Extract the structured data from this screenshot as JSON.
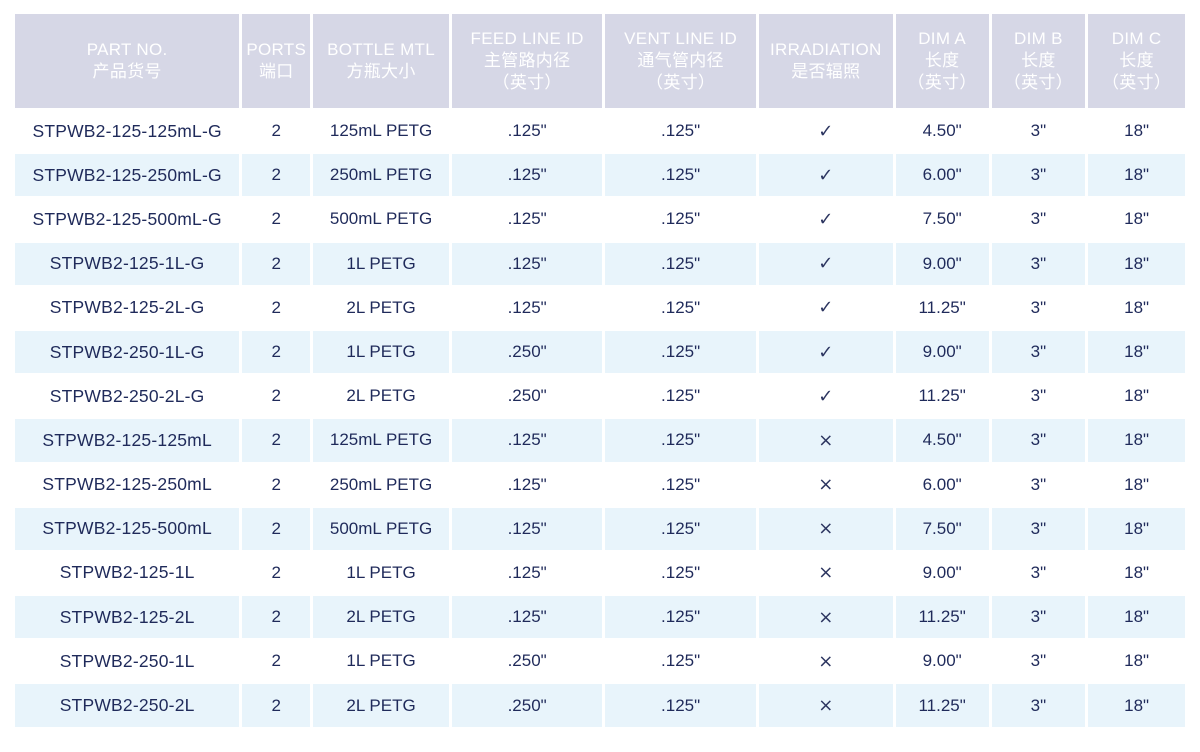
{
  "columns": [
    {
      "en": "PART NO.",
      "zh": "产品货号",
      "zh2": ""
    },
    {
      "en": "PORTS",
      "zh": "端口",
      "zh2": ""
    },
    {
      "en": "BOTTLE MTL",
      "zh": "方瓶大小",
      "zh2": ""
    },
    {
      "en": "FEED LINE ID",
      "zh": "主管路内径",
      "zh2": "（英寸）"
    },
    {
      "en": "VENT LINE ID",
      "zh": "通气管内径",
      "zh2": "（英寸）"
    },
    {
      "en": "IRRADIATION",
      "zh": "是否辐照",
      "zh2": ""
    },
    {
      "en": "DIM A",
      "zh": "长度",
      "zh2": "（英寸）"
    },
    {
      "en": "DIM B",
      "zh": "长度",
      "zh2": "（英寸）"
    },
    {
      "en": "DIM C",
      "zh": "长度",
      "zh2": "（英寸）"
    }
  ],
  "marks": {
    "yes": "✓",
    "no": "×"
  },
  "rows": [
    {
      "part": "STPWB2-125-125mL-G",
      "ports": "2",
      "bottle": "125mL PETG",
      "feed": ".125\"",
      "vent": ".125\"",
      "irradiation": "✓",
      "dim_a": "4.50\"",
      "dim_b": "3\"",
      "dim_c": "18\""
    },
    {
      "part": "STPWB2-125-250mL-G",
      "ports": "2",
      "bottle": "250mL PETG",
      "feed": ".125\"",
      "vent": ".125\"",
      "irradiation": "✓",
      "dim_a": "6.00\"",
      "dim_b": "3\"",
      "dim_c": "18\""
    },
    {
      "part": "STPWB2-125-500mL-G",
      "ports": "2",
      "bottle": "500mL PETG",
      "feed": ".125\"",
      "vent": ".125\"",
      "irradiation": "✓",
      "dim_a": "7.50\"",
      "dim_b": "3\"",
      "dim_c": "18\""
    },
    {
      "part": "STPWB2-125-1L-G",
      "ports": "2",
      "bottle": "1L PETG",
      "feed": ".125\"",
      "vent": ".125\"",
      "irradiation": "✓",
      "dim_a": "9.00\"",
      "dim_b": "3\"",
      "dim_c": "18\""
    },
    {
      "part": "STPWB2-125-2L-G",
      "ports": "2",
      "bottle": "2L PETG",
      "feed": ".125\"",
      "vent": ".125\"",
      "irradiation": "✓",
      "dim_a": "11.25\"",
      "dim_b": "3\"",
      "dim_c": "18\""
    },
    {
      "part": "STPWB2-250-1L-G",
      "ports": "2",
      "bottle": "1L PETG",
      "feed": ".250\"",
      "vent": ".125\"",
      "irradiation": "✓",
      "dim_a": "9.00\"",
      "dim_b": "3\"",
      "dim_c": "18\""
    },
    {
      "part": "STPWB2-250-2L-G",
      "ports": "2",
      "bottle": "2L PETG",
      "feed": ".250\"",
      "vent": ".125\"",
      "irradiation": "✓",
      "dim_a": "11.25\"",
      "dim_b": "3\"",
      "dim_c": "18\""
    },
    {
      "part": "STPWB2-125-125mL",
      "ports": "2",
      "bottle": "125mL PETG",
      "feed": ".125\"",
      "vent": ".125\"",
      "irradiation": "×",
      "dim_a": "4.50\"",
      "dim_b": "3\"",
      "dim_c": "18\""
    },
    {
      "part": "STPWB2-125-250mL",
      "ports": "2",
      "bottle": "250mL PETG",
      "feed": ".125\"",
      "vent": ".125\"",
      "irradiation": "×",
      "dim_a": "6.00\"",
      "dim_b": "3\"",
      "dim_c": "18\""
    },
    {
      "part": "STPWB2-125-500mL",
      "ports": "2",
      "bottle": "500mL PETG",
      "feed": ".125\"",
      "vent": ".125\"",
      "irradiation": "×",
      "dim_a": "7.50\"",
      "dim_b": "3\"",
      "dim_c": "18\""
    },
    {
      "part": "STPWB2-125-1L",
      "ports": "2",
      "bottle": "1L PETG",
      "feed": ".125\"",
      "vent": ".125\"",
      "irradiation": "×",
      "dim_a": "9.00\"",
      "dim_b": "3\"",
      "dim_c": "18\""
    },
    {
      "part": "STPWB2-125-2L",
      "ports": "2",
      "bottle": "2L PETG",
      "feed": ".125\"",
      "vent": ".125\"",
      "irradiation": "×",
      "dim_a": "11.25\"",
      "dim_b": "3\"",
      "dim_c": "18\""
    },
    {
      "part": "STPWB2-250-1L",
      "ports": "2",
      "bottle": "1L PETG",
      "feed": ".250\"",
      "vent": ".125\"",
      "irradiation": "×",
      "dim_a": "9.00\"",
      "dim_b": "3\"",
      "dim_c": "18\""
    },
    {
      "part": "STPWB2-250-2L",
      "ports": "2",
      "bottle": "2L PETG",
      "feed": ".250\"",
      "vent": ".125\"",
      "irradiation": "×",
      "dim_a": "11.25\"",
      "dim_b": "3\"",
      "dim_c": "18\""
    }
  ]
}
